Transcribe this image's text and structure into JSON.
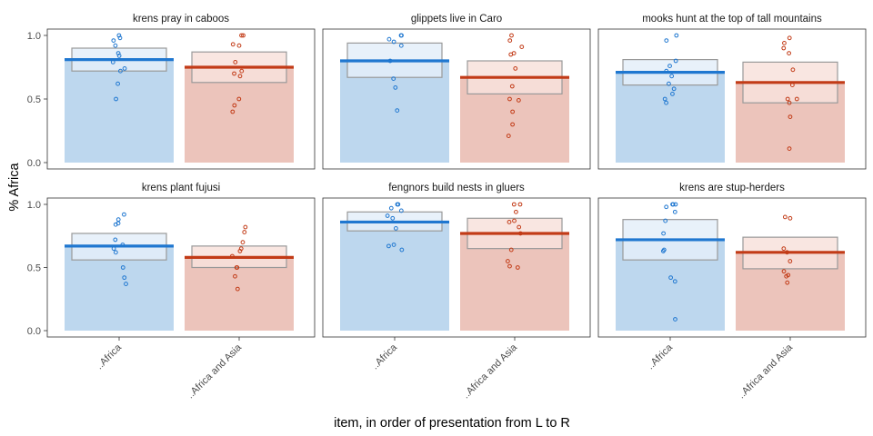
{
  "chart_data": {
    "type": "bar",
    "layout": "facets 2 rows x 3 columns",
    "xlabel": "item, in order of presentation from L to R",
    "ylabel": "% Africa",
    "ylim": [
      0,
      1
    ],
    "yticks": [
      0.0,
      0.5,
      1.0
    ],
    "ytick_labels": [
      "0.0",
      "0.5",
      "1.0"
    ],
    "grid": false,
    "categories": [
      "..Africa",
      "..Africa and Asia"
    ],
    "colors": {
      "africa_bar": "#bdd7ee",
      "africa_line": "#1f77d0",
      "asia_bar": "#ecc4bb",
      "asia_line": "#c23b17",
      "box_stroke": "#999999",
      "africa_box_fill": "#e4eef9",
      "asia_box_fill": "#f8e2dc",
      "panel_border": "#333333"
    },
    "panels": [
      {
        "title": "krens pray in  caboos",
        "values": [
          0.81,
          0.75
        ],
        "ci": [
          [
            0.72,
            0.9
          ],
          [
            0.63,
            0.87
          ]
        ],
        "points": [
          [
            1.0,
            0.98,
            0.96,
            0.92,
            0.86,
            0.84,
            0.79,
            0.74,
            0.72,
            0.62,
            0.5
          ],
          [
            1.0,
            1.0,
            0.93,
            0.92,
            0.79,
            0.72,
            0.7,
            0.68,
            0.5,
            0.45,
            0.4
          ]
        ]
      },
      {
        "title": "glippets live in  Caro",
        "values": [
          0.8,
          0.67
        ],
        "ci": [
          [
            0.67,
            0.94
          ],
          [
            0.54,
            0.8
          ]
        ],
        "points": [
          [
            1.0,
            1.0,
            0.97,
            0.95,
            0.92,
            0.8,
            0.66,
            0.59,
            0.41
          ],
          [
            1.0,
            0.96,
            0.91,
            0.86,
            0.85,
            0.74,
            0.6,
            0.5,
            0.49,
            0.4,
            0.3,
            0.21
          ]
        ]
      },
      {
        "title": "mooks hunt  at the top of tall mountains",
        "values": [
          0.71,
          0.63
        ],
        "ci": [
          [
            0.61,
            0.81
          ],
          [
            0.47,
            0.79
          ]
        ],
        "points": [
          [
            1.0,
            0.96,
            0.8,
            0.76,
            0.72,
            0.68,
            0.62,
            0.58,
            0.54,
            0.5,
            0.47
          ],
          [
            0.98,
            0.94,
            0.9,
            0.86,
            0.73,
            0.61,
            0.5,
            0.5,
            0.47,
            0.36,
            0.11
          ]
        ]
      },
      {
        "title": "krens plant  fujusi",
        "values": [
          0.67,
          0.58
        ],
        "ci": [
          [
            0.56,
            0.77
          ],
          [
            0.5,
            0.67
          ]
        ],
        "points": [
          [
            0.92,
            0.88,
            0.85,
            0.84,
            0.72,
            0.68,
            0.65,
            0.62,
            0.5,
            0.42,
            0.37
          ],
          [
            0.82,
            0.78,
            0.7,
            0.65,
            0.63,
            0.59,
            0.5,
            0.5,
            0.43,
            0.33
          ]
        ]
      },
      {
        "title": "fengnors build nests in  gluers",
        "values": [
          0.86,
          0.77
        ],
        "ci": [
          [
            0.79,
            0.94
          ],
          [
            0.65,
            0.89
          ]
        ],
        "points": [
          [
            1.0,
            1.0,
            0.97,
            0.95,
            0.91,
            0.89,
            0.81,
            0.68,
            0.67,
            0.64
          ],
          [
            1.0,
            1.0,
            0.94,
            0.87,
            0.86,
            0.82,
            0.77,
            0.64,
            0.55,
            0.51,
            0.5
          ]
        ]
      },
      {
        "title": "krens are  stup-herders",
        "values": [
          0.72,
          0.62
        ],
        "ci": [
          [
            0.56,
            0.88
          ],
          [
            0.49,
            0.74
          ]
        ],
        "points": [
          [
            1.0,
            1.0,
            1.0,
            0.98,
            0.94,
            0.87,
            0.77,
            0.64,
            0.63,
            0.42,
            0.39,
            0.09
          ],
          [
            0.9,
            0.89,
            0.65,
            0.62,
            0.55,
            0.47,
            0.44,
            0.43,
            0.38
          ]
        ]
      }
    ]
  }
}
